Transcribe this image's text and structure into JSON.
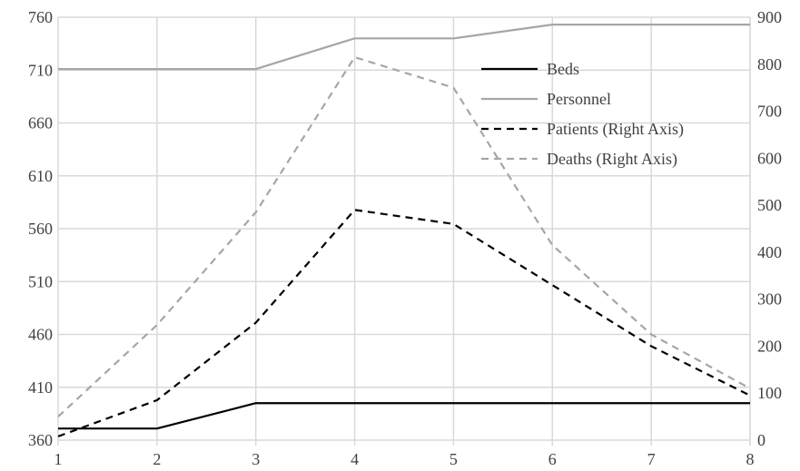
{
  "chart_data": {
    "type": "line",
    "title": "",
    "xlabel": "",
    "ylabel": "",
    "y2label": "",
    "x": [
      1,
      2,
      3,
      4,
      5,
      6,
      7,
      8
    ],
    "x_tick_labels": [
      "1",
      "2",
      "3",
      "4",
      "5",
      "6",
      "7",
      "8"
    ],
    "ylim": [
      360,
      760
    ],
    "y_ticks": [
      360,
      410,
      460,
      510,
      560,
      610,
      660,
      710,
      760
    ],
    "y_tick_labels": [
      "360",
      "410",
      "460",
      "510",
      "560",
      "610",
      "660",
      "710",
      "760"
    ],
    "y2lim": [
      0,
      900
    ],
    "y2_ticks": [
      0,
      100,
      200,
      300,
      400,
      500,
      600,
      700,
      800,
      900
    ],
    "y2_tick_labels": [
      "0",
      "100",
      "200",
      "300",
      "400",
      "500",
      "600",
      "700",
      "800",
      "900"
    ],
    "grid": true,
    "legend_position": "top-right",
    "series": [
      {
        "name": "Beds",
        "axis": "left",
        "color": "#000000",
        "dash": "solid",
        "values": [
          371,
          371,
          395,
          395,
          395,
          395,
          395,
          395
        ]
      },
      {
        "name": "Personnel",
        "axis": "left",
        "color": "#a6a6a6",
        "dash": "solid",
        "values": [
          711,
          711,
          711,
          740,
          740,
          753,
          753,
          753
        ]
      },
      {
        "name": "Patients (Right Axis)",
        "axis": "right",
        "color": "#000000",
        "dash": "dashed",
        "values": [
          8,
          85,
          250,
          490,
          460,
          330,
          200,
          95
        ]
      },
      {
        "name": "Deaths (Right Axis)",
        "axis": "right",
        "color": "#a6a6a6",
        "dash": "dashed",
        "values": [
          50,
          245,
          485,
          815,
          750,
          415,
          225,
          110
        ]
      }
    ]
  }
}
